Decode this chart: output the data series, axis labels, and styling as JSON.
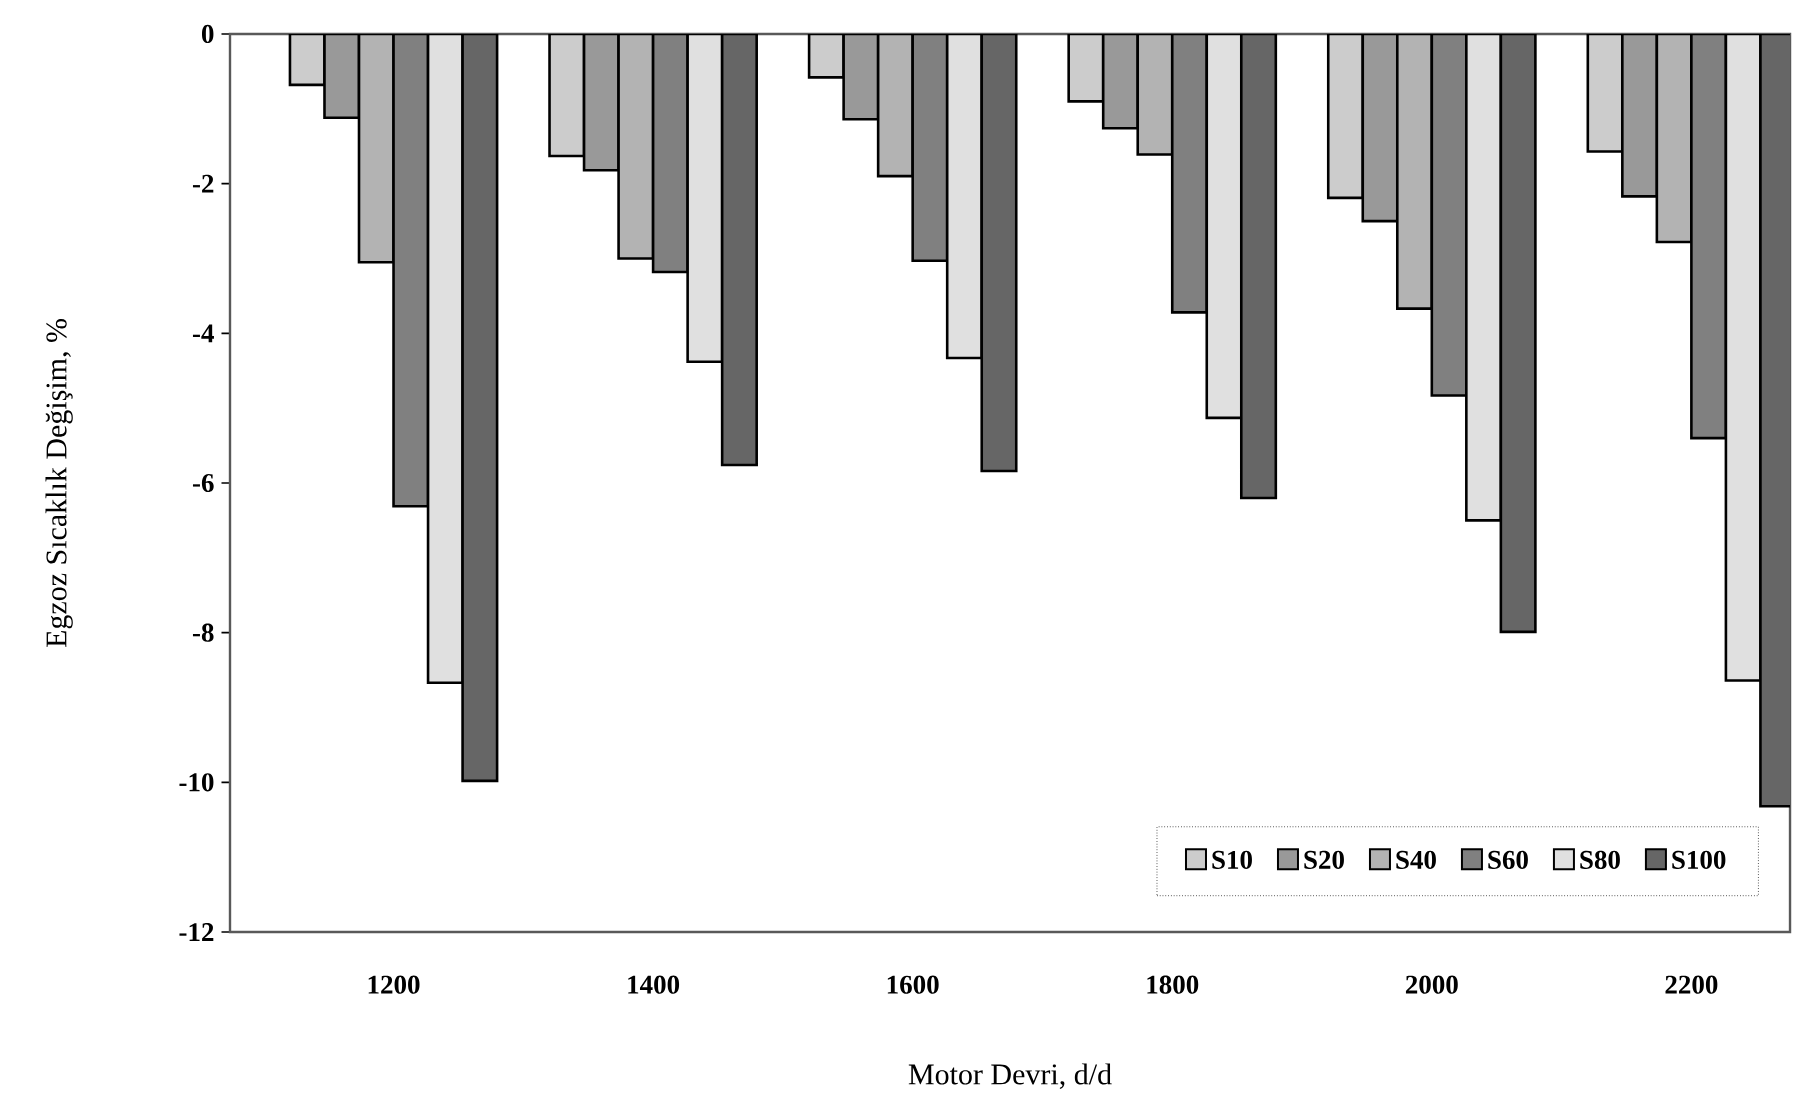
{
  "chart_data": {
    "type": "bar",
    "xlabel": "Motor Devri, d/d",
    "ylabel": "Egzoz Sıcaklık Değişim,  %",
    "categories": [
      "1200",
      "1400",
      "1600",
      "1800",
      "2000",
      "2200"
    ],
    "series": [
      {
        "name": "S10",
        "color": "#cccccc",
        "values": [
          -0.68,
          -1.63,
          -0.58,
          -0.9,
          -2.19,
          -1.57
        ]
      },
      {
        "name": "S20",
        "color": "#999999",
        "values": [
          -1.12,
          -1.82,
          -1.14,
          -1.26,
          -2.5,
          -2.17
        ]
      },
      {
        "name": "S40",
        "color": "#b3b3b3",
        "values": [
          -3.05,
          -3.0,
          -1.9,
          -1.61,
          -3.67,
          -2.78
        ]
      },
      {
        "name": "S60",
        "color": "#808080",
        "values": [
          -6.31,
          -3.18,
          -3.03,
          -3.72,
          -4.83,
          -5.4
        ]
      },
      {
        "name": "S80",
        "color": "#e0e0e0",
        "values": [
          -8.67,
          -4.38,
          -4.33,
          -5.13,
          -6.5,
          -8.64
        ]
      },
      {
        "name": "S100",
        "color": "#666666",
        "values": [
          -9.98,
          -5.76,
          -5.84,
          -6.2,
          -7.99,
          -10.32
        ]
      }
    ],
    "ylim": [
      -12,
      0
    ],
    "yticks": [
      0,
      -2,
      -4,
      -6,
      -8,
      -10,
      -12
    ],
    "grid": false,
    "legend": "bottom right"
  }
}
